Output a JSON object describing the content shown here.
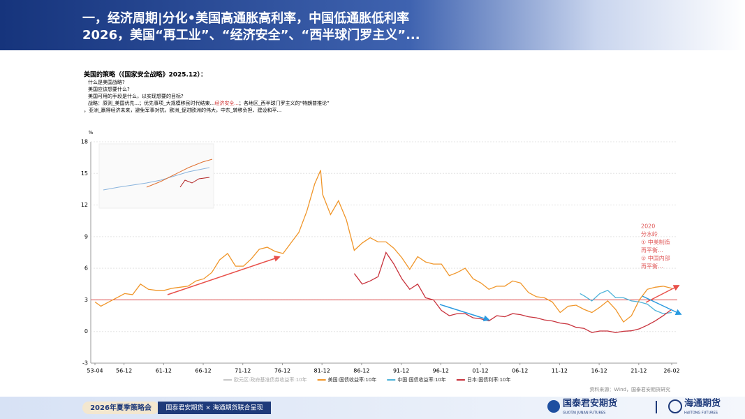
{
  "header": {
    "title_line1": "一，经济周期|分化•美国高通胀高利率，中国低通胀低利率",
    "title_line2": "2026，美国“再工业”、“经济安全”、“西半球门罗主义”..."
  },
  "body": {
    "heading": "美国的策略（《国家安全战略》2025.12）：",
    "lines": [
      "什么是美国战略?",
      "美国应该想要什么?",
      "美国可用的手段是什么，以实现想要的目标?"
    ],
    "strategy_before": "战略：原则_美国优先...；优先事项_大规模移民时代结束...",
    "strategy_highlight": "经济安全...",
    "strategy_after": "；各地区_西半球门罗主义的“特朗普推论”",
    "strategy_line2": "，亚洲_赢得经济未来，避免军事对抗，欧洲_促进欧洲的伟大，中东_转移负担、建设和平..."
  },
  "chart_data": {
    "type": "line",
    "y_unit": "%",
    "xlim": [
      1953.25,
      2026.08
    ],
    "xticks": [
      {
        "value": 1953.25,
        "label": "53-04"
      },
      {
        "value": 1956.92,
        "label": "56-12"
      },
      {
        "value": 1961.92,
        "label": "61-12"
      },
      {
        "value": 1966.92,
        "label": "66-12"
      },
      {
        "value": 1971.92,
        "label": "71-12"
      },
      {
        "value": 1976.92,
        "label": "76-12"
      },
      {
        "value": 1981.92,
        "label": "81-12"
      },
      {
        "value": 1986.92,
        "label": "86-12"
      },
      {
        "value": 1991.92,
        "label": "91-12"
      },
      {
        "value": 1996.92,
        "label": "96-12"
      },
      {
        "value": 2001.92,
        "label": "01-12"
      },
      {
        "value": 2006.92,
        "label": "06-12"
      },
      {
        "value": 2011.92,
        "label": "11-12"
      },
      {
        "value": 2016.92,
        "label": "16-12"
      },
      {
        "value": 2021.92,
        "label": "21-12"
      },
      {
        "value": 2026.08,
        "label": "26-02"
      }
    ],
    "ylim": [
      -3,
      18
    ],
    "yticks": [
      -3,
      0,
      3,
      6,
      9,
      12,
      15,
      18
    ],
    "grid": true,
    "reference_line": {
      "value": 3,
      "color": "#e05a5a"
    },
    "series": [
      {
        "name": "欧元区:政府基准债券收益率:10年",
        "color": "#c8c8c8",
        "x": [],
        "values": []
      },
      {
        "name": "美国:国债收益率:10年",
        "color": "#f0962a",
        "x": [
          1953.25,
          1954,
          1955,
          1956,
          1957,
          1958,
          1959,
          1960,
          1961,
          1962,
          1963,
          1964,
          1965,
          1966,
          1967,
          1968,
          1969,
          1970,
          1971,
          1972,
          1973,
          1974,
          1975,
          1976,
          1977,
          1978,
          1979,
          1980,
          1981,
          1981.75,
          1982,
          1983,
          1984,
          1985,
          1986,
          1987,
          1988,
          1989,
          1990,
          1991,
          1992,
          1993,
          1994,
          1995,
          1996,
          1997,
          1998,
          1999,
          2000,
          2001,
          2002,
          2003,
          2004,
          2005,
          2006,
          2007,
          2008,
          2009,
          2010,
          2011,
          2012,
          2013,
          2014,
          2015,
          2016,
          2017,
          2018,
          2019,
          2020,
          2021,
          2022,
          2023,
          2024,
          2025,
          2026.08
        ],
        "values": [
          2.8,
          2.4,
          2.8,
          3.2,
          3.6,
          3.5,
          4.5,
          4.0,
          3.9,
          3.9,
          4.1,
          4.2,
          4.3,
          4.8,
          5.0,
          5.6,
          6.8,
          7.4,
          6.2,
          6.2,
          6.9,
          7.8,
          8.0,
          7.6,
          7.4,
          8.4,
          9.4,
          11.4,
          14.0,
          15.3,
          13.0,
          11.1,
          12.4,
          10.6,
          7.7,
          8.4,
          8.9,
          8.5,
          8.5,
          7.9,
          7.0,
          5.9,
          7.1,
          6.6,
          6.4,
          6.4,
          5.3,
          5.6,
          6.0,
          5.0,
          4.6,
          4.0,
          4.3,
          4.3,
          4.8,
          4.6,
          3.7,
          3.3,
          3.2,
          2.8,
          1.8,
          2.4,
          2.5,
          2.1,
          1.8,
          2.3,
          2.9,
          2.1,
          0.9,
          1.5,
          3.0,
          4.0,
          4.2,
          4.3,
          4.1
        ]
      },
      {
        "name": "中国:国债收益率:10年",
        "color": "#4fb3d9",
        "x": [
          2014.5,
          2015,
          2016,
          2017,
          2018,
          2019,
          2020,
          2021,
          2022,
          2023,
          2024,
          2025,
          2026.08
        ],
        "values": [
          3.6,
          3.4,
          2.9,
          3.6,
          3.9,
          3.2,
          3.2,
          2.9,
          2.8,
          2.6,
          2.0,
          1.7,
          1.8
        ]
      },
      {
        "name": "日本:国债利率:10年",
        "color": "#c8323c",
        "x": [
          1986,
          1987,
          1988,
          1989,
          1990,
          1991,
          1992,
          1993,
          1994,
          1995,
          1996,
          1997,
          1998,
          1999,
          2000,
          2001,
          2002,
          2003,
          2004,
          2005,
          2006,
          2007,
          2008,
          2009,
          2010,
          2011,
          2012,
          2013,
          2014,
          2015,
          2016,
          2017,
          2018,
          2019,
          2020,
          2021,
          2022,
          2023,
          2024,
          2025,
          2026.08
        ],
        "values": [
          5.5,
          4.5,
          4.8,
          5.2,
          7.5,
          6.4,
          5.0,
          4.0,
          4.5,
          3.2,
          3.0,
          2.0,
          1.5,
          1.7,
          1.7,
          1.3,
          1.2,
          1.0,
          1.5,
          1.4,
          1.7,
          1.6,
          1.4,
          1.3,
          1.1,
          1.0,
          0.8,
          0.7,
          0.4,
          0.3,
          -0.1,
          0.05,
          0.05,
          -0.1,
          0.02,
          0.07,
          0.25,
          0.6,
          1.0,
          1.5,
          2.1
        ]
      }
    ],
    "annotation": [
      "2020",
      "分水岭",
      "① 中美制造",
      "再平衡...",
      "② 中国内部",
      "再平衡..."
    ],
    "source": "资料来源：Wind，国泰君安期货研究"
  },
  "footer": {
    "event": "2026年夏季策略会",
    "presenter": "国泰君安期货 × 海通期货联合呈现",
    "logo1": "国泰君安期货",
    "logo1_en": "GUOTAI JUNAN FUTURES",
    "logo2": "海通期货",
    "logo2_en": "HAITONG FUTURES"
  }
}
